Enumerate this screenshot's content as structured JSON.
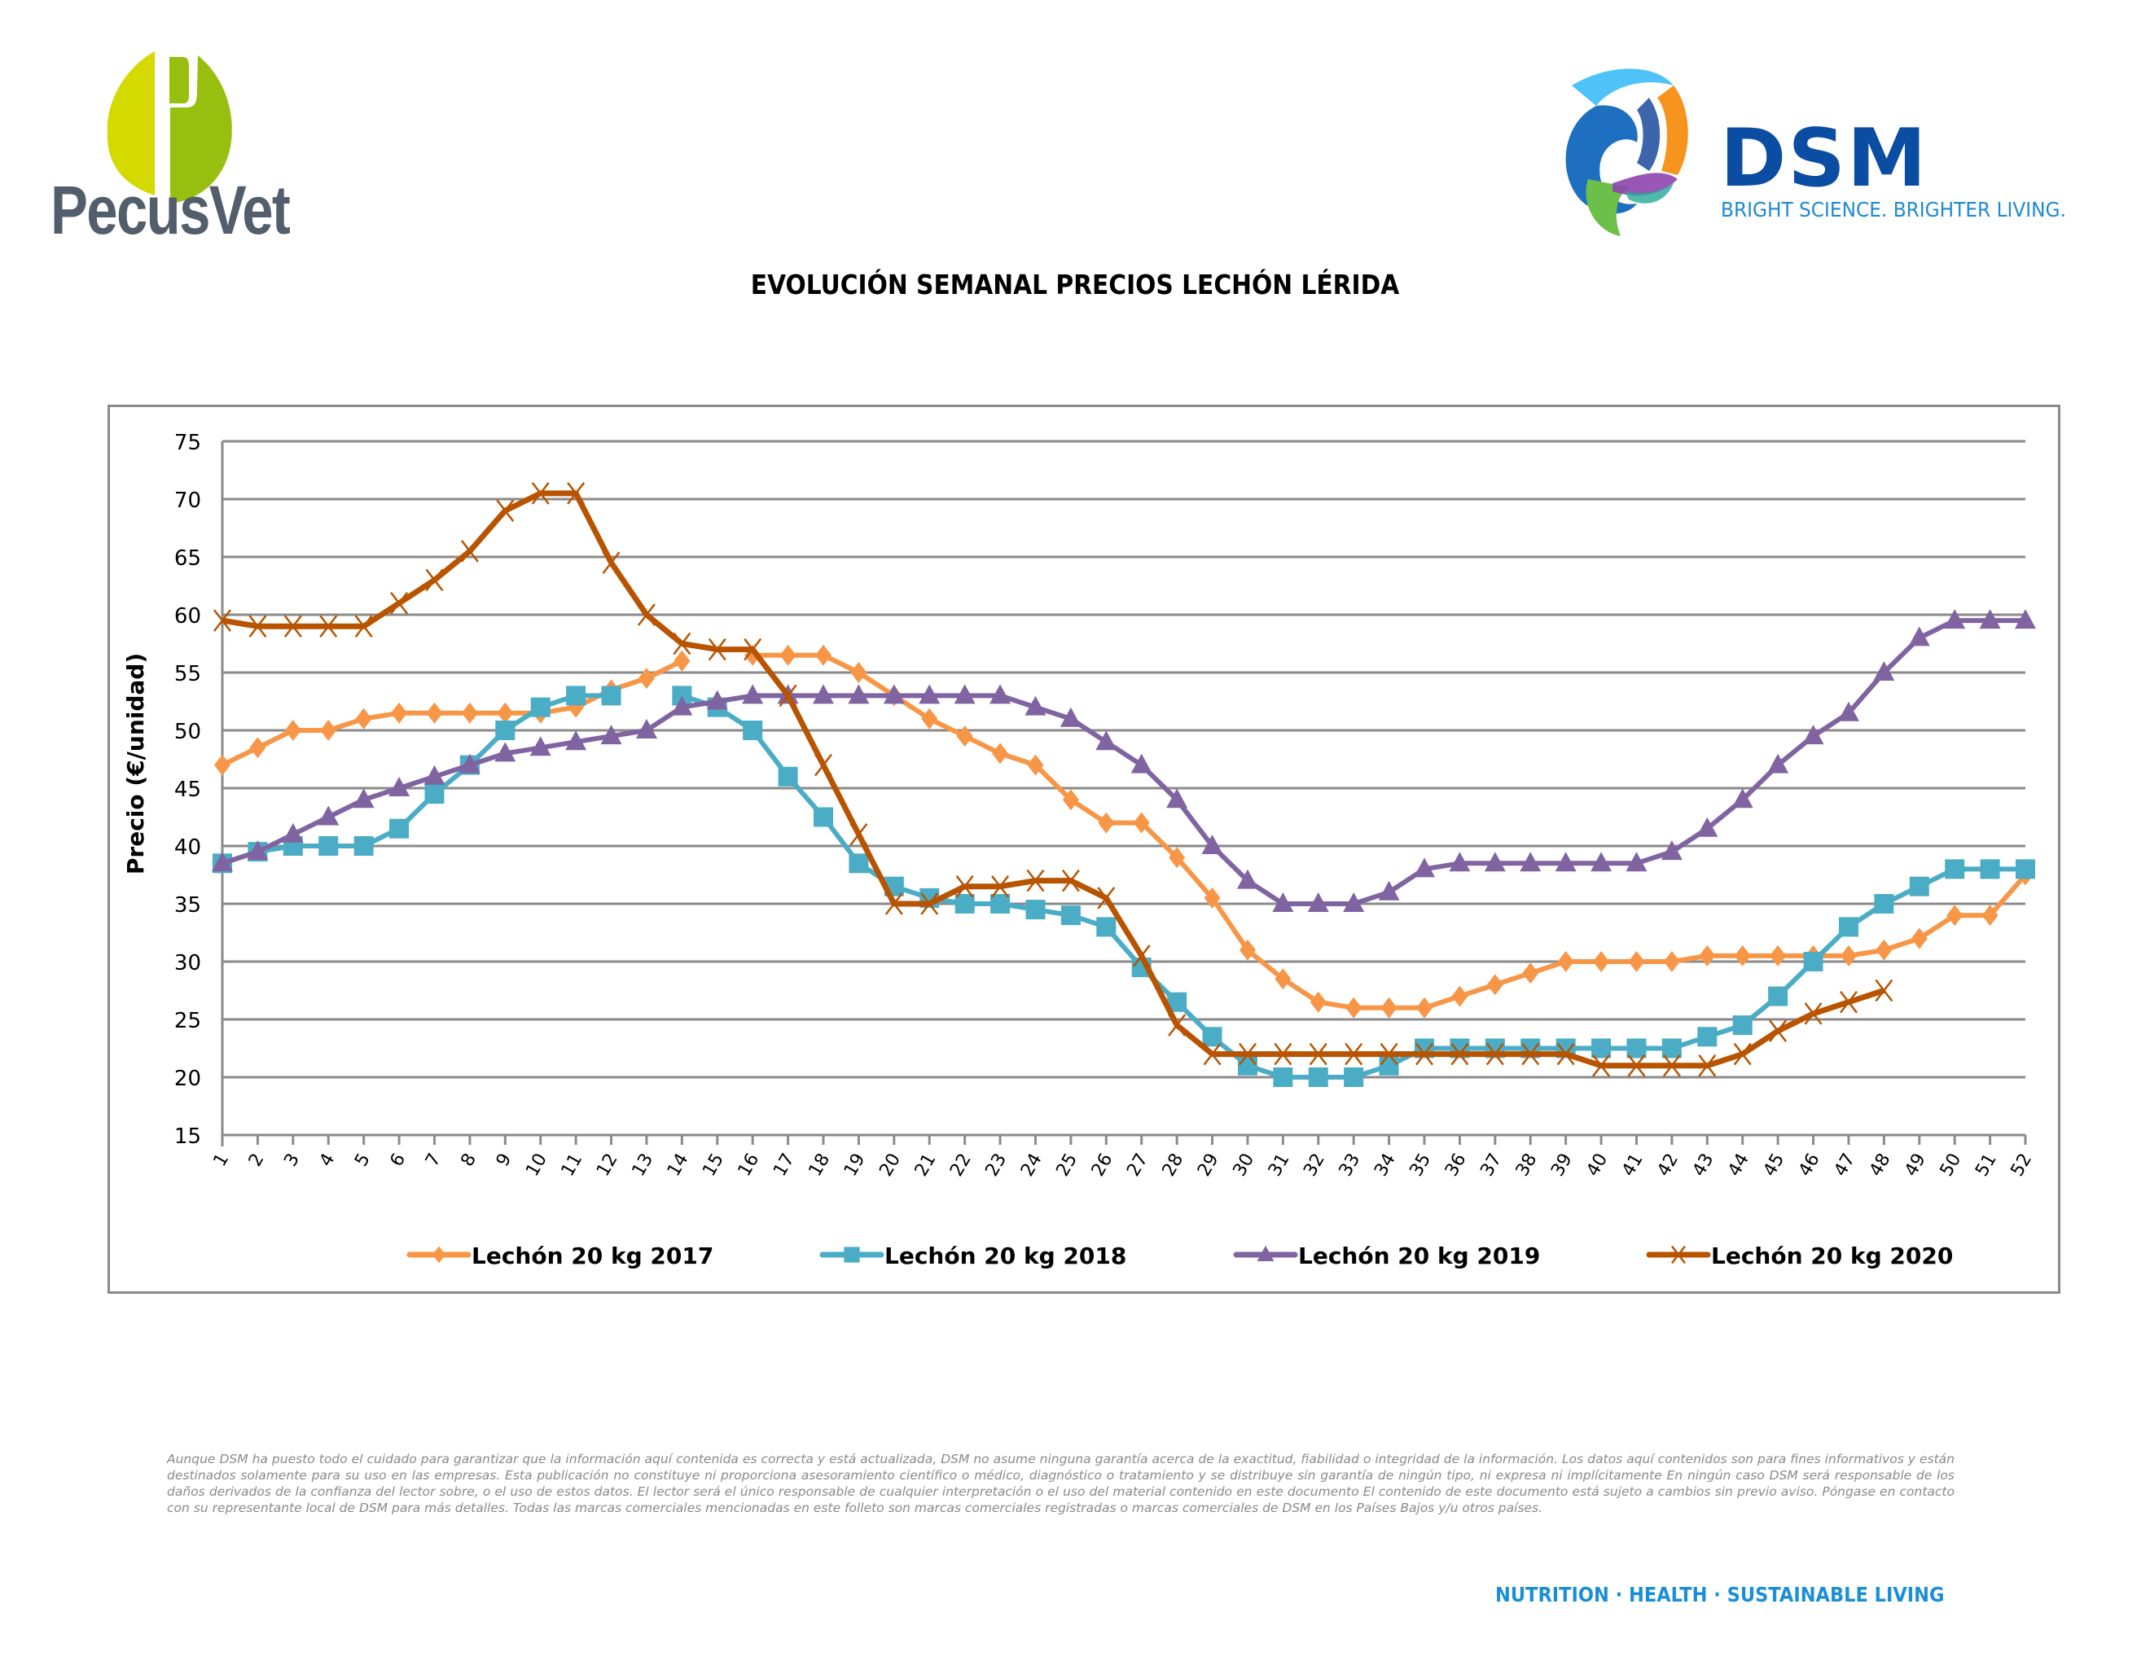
{
  "header": {
    "left_logo": {
      "name": "PecusVet",
      "colors": [
        "#d4d900",
        "#97bf10"
      ]
    },
    "right_logo": {
      "name": "DSM",
      "tagline": "BRIGHT SCIENCE. BRIGHTER LIVING.",
      "color": "#0a4da2",
      "tagline_color": "#1e8ad0"
    }
  },
  "footer": {
    "disclaimer": "Aunque DSM ha puesto todo el cuidado para garantizar que la información aquí contenida es correcta y está actualizada, DSM no asume ninguna garantía acerca de la exactitud, fiabilidad o integridad de la información. Los datos aquí contenidos son para fines informativos y están destinados solamente para su uso en las empresas. Esta publicación no constituye ni proporciona asesoramiento científico o médico, diagnóstico o tratamiento y se distribuye sin garantía de ningún tipo, ni expresa ni implícitamente En ningún caso DSM será responsable de los daños derivados de la confianza del lector sobre, o el uso de estos datos. El lector será el único responsable de cualquier interpretación o el uso del material contenido en este documento El contenido de este documento está sujeto a cambios sin previo aviso. Póngase en contacto con su representante local de DSM para más detalles. Todas las marcas comerciales mencionadas en este folleto son marcas comerciales registradas o marcas comerciales de DSM en los Países Bajos y/u otros países.",
    "tagline": "NUTRITION  ·  HEALTH  ·  SUSTAINABLE LIVING"
  },
  "chart_data": {
    "type": "line",
    "title": "EVOLUCIÓN SEMANAL PRECIOS LECHÓN LÉRIDA",
    "xlabel": "",
    "ylabel": "Precio (€/unidad)",
    "ylim": [
      15,
      75
    ],
    "yticks": [
      15,
      20,
      25,
      30,
      35,
      40,
      45,
      50,
      55,
      60,
      65,
      70,
      75
    ],
    "grid": true,
    "legend_position": "bottom",
    "x": [
      1,
      2,
      3,
      4,
      5,
      6,
      7,
      8,
      9,
      10,
      11,
      12,
      13,
      14,
      15,
      16,
      17,
      18,
      19,
      20,
      21,
      22,
      23,
      24,
      25,
      26,
      27,
      28,
      29,
      30,
      31,
      32,
      33,
      34,
      35,
      36,
      37,
      38,
      39,
      40,
      41,
      42,
      43,
      44,
      45,
      46,
      47,
      48,
      49,
      50,
      51,
      52
    ],
    "series": [
      {
        "name": "Lechón 20 kg 2017",
        "color": "#f79646",
        "marker": "diamond",
        "values": [
          47,
          48.5,
          50,
          50,
          51,
          51.5,
          51.5,
          51.5,
          51.5,
          51.5,
          52,
          53.5,
          54.5,
          56,
          null,
          56.5,
          56.5,
          56.5,
          55,
          53,
          51,
          49.5,
          48,
          47,
          44,
          42,
          42,
          39,
          35.5,
          31,
          28.5,
          26.5,
          26,
          26,
          26,
          27,
          28,
          29,
          30,
          30,
          30,
          30,
          30.5,
          30.5,
          30.5,
          30.5,
          30.5,
          31,
          32,
          34,
          34,
          37.5
        ]
      },
      {
        "name": "Lechón 20 kg 2018",
        "color": "#4bacc6",
        "marker": "square",
        "values": [
          38.5,
          39.5,
          40,
          40,
          40,
          41.5,
          44.5,
          47,
          50,
          52,
          53,
          53,
          null,
          53,
          52,
          50,
          46,
          42.5,
          38.5,
          36.5,
          35.5,
          35,
          35,
          34.5,
          34,
          33,
          29.5,
          26.5,
          23.5,
          21,
          20,
          20,
          20,
          21,
          22.5,
          22.5,
          22.5,
          22.5,
          22.5,
          22.5,
          22.5,
          22.5,
          23.5,
          24.5,
          27,
          30,
          33,
          35,
          36.5,
          38,
          38,
          38
        ]
      },
      {
        "name": "Lechón 20 kg 2019",
        "color": "#8064a2",
        "marker": "triangle",
        "values": [
          38.5,
          39.5,
          41,
          42.5,
          44,
          45,
          46,
          47,
          48,
          48.5,
          49,
          49.5,
          50,
          52,
          52.5,
          53,
          53,
          53,
          53,
          53,
          53,
          53,
          53,
          52,
          51,
          49,
          47,
          44,
          40,
          37,
          35,
          35,
          35,
          36,
          38,
          38.5,
          38.5,
          38.5,
          38.5,
          38.5,
          38.5,
          39.5,
          41.5,
          44,
          47,
          49.5,
          51.5,
          55,
          58,
          59.5,
          59.5,
          59.5
        ]
      },
      {
        "name": "Lechón 20 kg 2020",
        "color": "#b85400",
        "marker": "x",
        "values": [
          59.5,
          59,
          59,
          59,
          59,
          61,
          63,
          65.5,
          69,
          70.5,
          70.5,
          64.5,
          60,
          57.5,
          57,
          57,
          53,
          47,
          41,
          35,
          35,
          36.5,
          36.5,
          37,
          37,
          35.5,
          30.5,
          24.5,
          22,
          22,
          22,
          22,
          22,
          22,
          22,
          22,
          22,
          22,
          22,
          21,
          21,
          21,
          21,
          22,
          24,
          25.5,
          26.5,
          27.5,
          null,
          null,
          null,
          null
        ]
      }
    ]
  }
}
